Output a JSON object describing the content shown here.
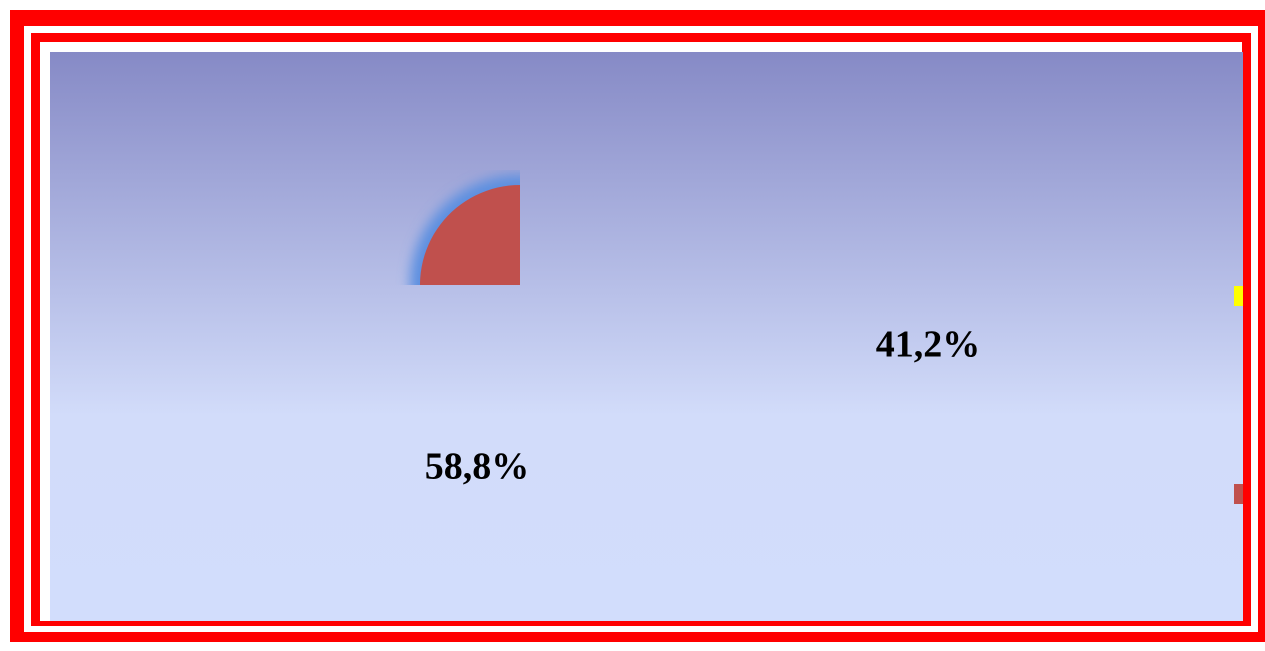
{
  "chart_data": {
    "type": "pie",
    "values": [
      41.2,
      58.8
    ],
    "value_labels": [
      "41,2%",
      "58,8%"
    ],
    "colors": [
      "#ffff00",
      "#c0504d"
    ]
  }
}
